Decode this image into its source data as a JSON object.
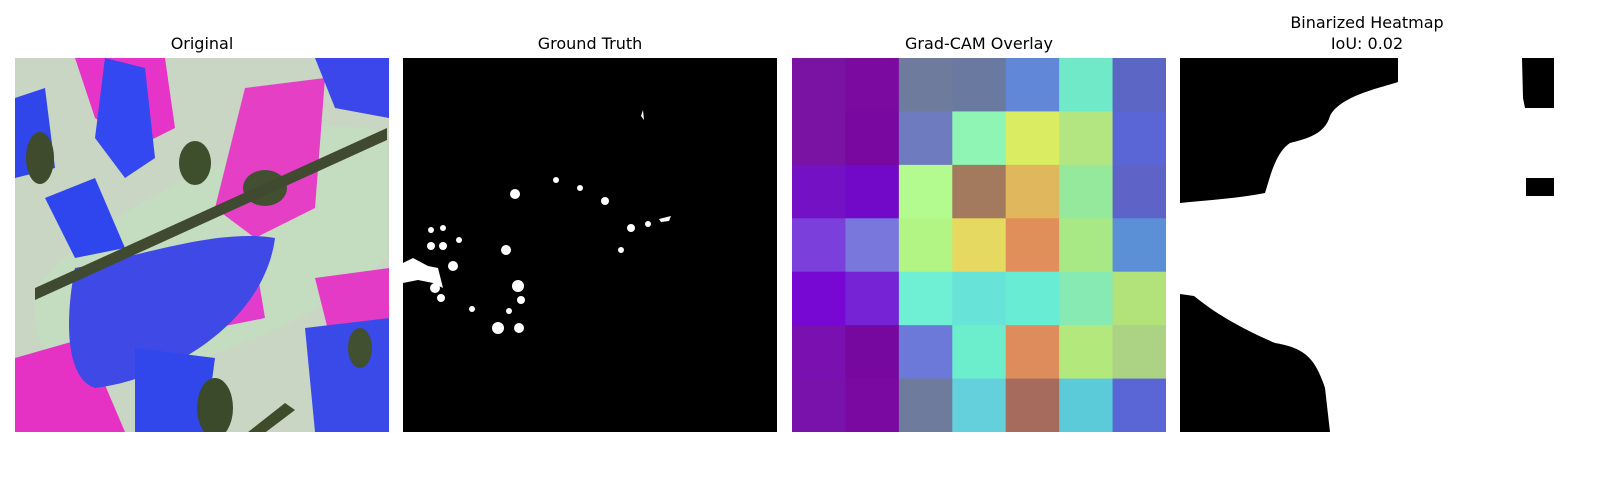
{
  "panels": [
    {
      "title": "Original"
    },
    {
      "title": "Ground Truth"
    },
    {
      "title": "Grad-CAM Overlay"
    },
    {
      "title": "Binarized Heatmap",
      "subtitle": "IoU: 0.02"
    }
  ],
  "gradcam": {
    "rows": 7,
    "cols": 7,
    "cells": [
      [
        "#7a13a3",
        "#7a0aa0",
        "#6e7b9d",
        "#6a79a0",
        "#6187d8",
        "#6fe9c8",
        "#5b66c5"
      ],
      [
        "#7a12a4",
        "#78089f",
        "#6e7bbe",
        "#8ef5b4",
        "#d9ec62",
        "#b3e581",
        "#5a66d6"
      ],
      [
        "#7411c4",
        "#7208c8",
        "#b3fb8f",
        "#a47a5e",
        "#e1b75e",
        "#95e99d",
        "#5e64c7"
      ],
      [
        "#7b3fdc",
        "#7977dc",
        "#b2f584",
        "#e6d962",
        "#e08f5a",
        "#a8e985",
        "#5b90d7"
      ],
      [
        "#7708d4",
        "#7623d6",
        "#6ff0d4",
        "#68e3d8",
        "#69ecd4",
        "#86eab2",
        "#b2e27a"
      ],
      [
        "#7910af",
        "#77089f",
        "#6c79d8",
        "#6ceecd",
        "#df8c5d",
        "#b3e87c",
        "#acd283"
      ],
      [
        "#7912ab",
        "#7909a0",
        "#6e7b9d",
        "#63d0db",
        "#a76b5d",
        "#5bcbd9",
        "#5a66d6"
      ]
    ]
  },
  "colors": {
    "gt_background": "#000000",
    "gt_foreground": "#ffffff",
    "bin_foreground": "#ffffff",
    "bin_background": "#000000"
  }
}
